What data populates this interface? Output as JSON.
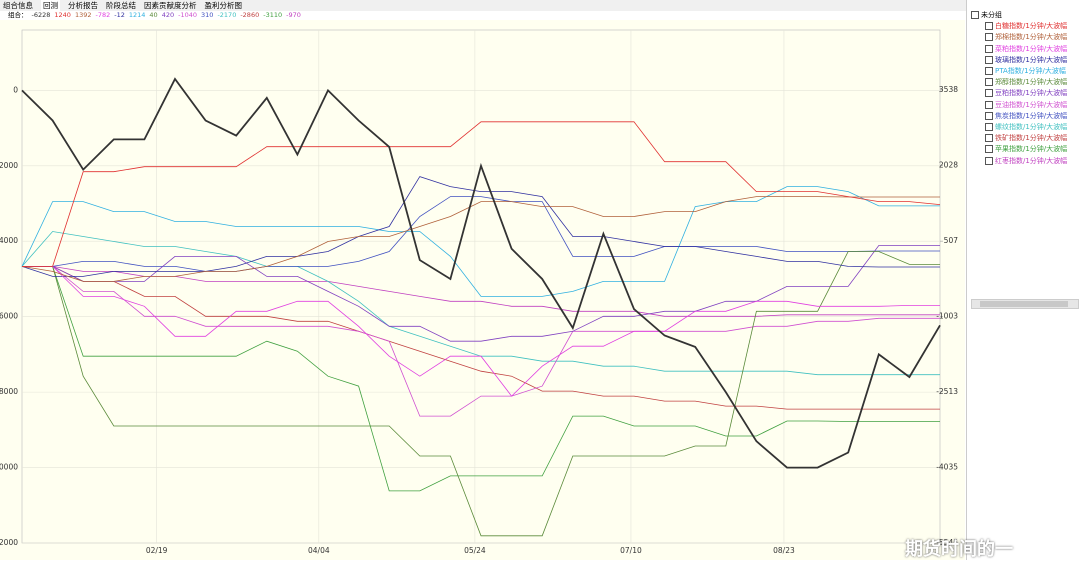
{
  "tabs": [
    "组合信息",
    "回测",
    "分析报告",
    "阶段总结",
    "因素贡献度分析",
    "盈利分析图"
  ],
  "tree_root": "未分组",
  "watermark": "期货时间的一",
  "chart_data": {
    "type": "line",
    "x": [
      0,
      10,
      20,
      30,
      40,
      50,
      60,
      70,
      80,
      90,
      100,
      110,
      120,
      130,
      140,
      150,
      160,
      170,
      180,
      190,
      200,
      210,
      220,
      230,
      240,
      250,
      260,
      270,
      280,
      290,
      300
    ],
    "xlim": [
      0,
      300
    ],
    "xticks": [
      {
        "value": 44,
        "label": "02/19"
      },
      {
        "value": 97,
        "label": "04/04"
      },
      {
        "value": 148,
        "label": "05/24"
      },
      {
        "value": 199,
        "label": "07/10"
      },
      {
        "value": 249,
        "label": "08/23"
      }
    ],
    "ylim": [
      -12000,
      1600
    ],
    "yticks": [
      0,
      -2000,
      -4000,
      -6000,
      -8000,
      -10000,
      -12000
    ],
    "y2lim": [
      -5545,
      4740
    ],
    "y2ticks": [
      3538,
      2028,
      507,
      -1003,
      -2513,
      -4035,
      -5545
    ],
    "grid": true,
    "series": [
      {
        "name": "组合：",
        "color": "#333333",
        "values": [
          0,
          -800,
          -2100,
          -1300,
          -1300,
          300,
          -800,
          -1200,
          -200,
          -1700,
          0,
          -800,
          -1500,
          -4500,
          -5000,
          -2000,
          -4200,
          -5000,
          -6300,
          -3800,
          -5800,
          -6500,
          -6800,
          -8000,
          -9300,
          -10000,
          -10000,
          -9600,
          -7000,
          -7600,
          -6228
        ]
      },
      {
        "name": "白糖指数/1分钟/大波幅",
        "color": "#e03030",
        "axis": "y2",
        "values": [
          0,
          0,
          1900,
          1900,
          2000,
          2000,
          2000,
          2000,
          2400,
          2400,
          2400,
          2400,
          2400,
          2400,
          2400,
          2900,
          2900,
          2900,
          2900,
          2900,
          2900,
          2100,
          2100,
          2100,
          1500,
          1500,
          1500,
          1400,
          1300,
          1300,
          1240
        ]
      },
      {
        "name": "郑棉指数/1分钟/大波幅",
        "color": "#b0603a",
        "axis": "y2",
        "values": [
          0,
          -100,
          -300,
          -300,
          -200,
          -200,
          -100,
          -100,
          0,
          200,
          500,
          600,
          600,
          800,
          1000,
          1300,
          1300,
          1200,
          1200,
          1000,
          1000,
          1100,
          1100,
          1300,
          1400,
          1400,
          1400,
          1392,
          1392,
          1392,
          1392
        ]
      },
      {
        "name": "菜粕指数/1分钟/大波幅",
        "color": "#e040e0",
        "axis": "y2",
        "values": [
          0,
          0,
          -600,
          -600,
          -800,
          -1400,
          -1400,
          -900,
          -900,
          -700,
          -700,
          -1200,
          -1800,
          -2200,
          -1800,
          -1800,
          -2600,
          -2000,
          -1600,
          -1600,
          -1300,
          -1300,
          -900,
          -900,
          -700,
          -700,
          -800,
          -800,
          -800,
          -782,
          -782
        ]
      },
      {
        "name": "玻璃指数/1分钟/大波幅",
        "color": "#3030a0",
        "axis": "y2",
        "values": [
          0,
          -200,
          -200,
          -100,
          -100,
          -100,
          -100,
          0,
          200,
          200,
          300,
          600,
          800,
          1800,
          1600,
          1500,
          1500,
          1400,
          600,
          600,
          500,
          400,
          400,
          300,
          200,
          100,
          100,
          0,
          -12,
          -12,
          -12
        ]
      },
      {
        "name": "PTA指数/1分钟/大波幅",
        "color": "#30b0e0",
        "axis": "y2",
        "values": [
          0,
          1300,
          1300,
          1100,
          1100,
          900,
          900,
          800,
          800,
          800,
          800,
          800,
          700,
          700,
          200,
          -600,
          -600,
          -600,
          -500,
          -300,
          -300,
          -300,
          1200,
          1300,
          1300,
          1600,
          1600,
          1500,
          1214,
          1214,
          1214
        ]
      },
      {
        "name": "郑醇指数/1分钟/大波幅",
        "color": "#5a8a3a",
        "axis": "y2",
        "values": [
          0,
          0,
          -2200,
          -3200,
          -3200,
          -3200,
          -3200,
          -3200,
          -3200,
          -3200,
          -3200,
          -3200,
          -3200,
          -3800,
          -3800,
          -5400,
          -5400,
          -5400,
          -3800,
          -3800,
          -3800,
          -3800,
          -3600,
          -3600,
          -900,
          -900,
          -900,
          300,
          300,
          40,
          40
        ]
      },
      {
        "name": "豆粕指数/1分钟/大波幅",
        "color": "#8040c0",
        "axis": "y2",
        "values": [
          0,
          0,
          -300,
          -300,
          -300,
          200,
          200,
          200,
          -200,
          -200,
          -500,
          -800,
          -1200,
          -1200,
          -1500,
          -1500,
          -1400,
          -1400,
          -1300,
          -1000,
          -1000,
          -900,
          -900,
          -700,
          -700,
          -400,
          -400,
          -400,
          420,
          420,
          420
        ]
      },
      {
        "name": "豆油指数/1分钟/大波幅",
        "color": "#d050d0",
        "axis": "y2",
        "values": [
          0,
          0,
          -500,
          -500,
          -1000,
          -1000,
          -1200,
          -1200,
          -1200,
          -1200,
          -1200,
          -1300,
          -1500,
          -3000,
          -3000,
          -2600,
          -2600,
          -2400,
          -1300,
          -1300,
          -1300,
          -1300,
          -1300,
          -1300,
          -1200,
          -1200,
          -1100,
          -1100,
          -1040,
          -1040,
          -1040
        ]
      },
      {
        "name": "焦炭指数/1分钟/大波幅",
        "color": "#4050c0",
        "axis": "y2",
        "values": [
          0,
          0,
          100,
          100,
          0,
          0,
          -100,
          -100,
          0,
          0,
          0,
          100,
          300,
          1000,
          1400,
          1400,
          1300,
          1300,
          200,
          200,
          200,
          400,
          400,
          400,
          400,
          300,
          300,
          300,
          310,
          310,
          310
        ]
      },
      {
        "name": "螺纹指数/1分钟/大波幅",
        "color": "#40c0c0",
        "axis": "y2",
        "values": [
          0,
          700,
          600,
          500,
          400,
          400,
          300,
          200,
          0,
          0,
          -300,
          -700,
          -1200,
          -1400,
          -1600,
          -1800,
          -1800,
          -1900,
          -1900,
          -2000,
          -2000,
          -2100,
          -2100,
          -2100,
          -2100,
          -2100,
          -2170,
          -2170,
          -2170,
          -2170,
          -2170
        ]
      },
      {
        "name": "铁矿指数/1分钟/大波幅",
        "color": "#c04040",
        "axis": "y2",
        "values": [
          0,
          0,
          -300,
          -300,
          -600,
          -600,
          -1000,
          -1000,
          -1000,
          -1100,
          -1100,
          -1300,
          -1500,
          -1700,
          -1900,
          -2100,
          -2200,
          -2500,
          -2500,
          -2600,
          -2600,
          -2700,
          -2700,
          -2800,
          -2800,
          -2860,
          -2860,
          -2860,
          -2860,
          -2860,
          -2860
        ]
      },
      {
        "name": "苹果指数/1分钟/大波幅",
        "color": "#40a040",
        "axis": "y2",
        "values": [
          0,
          0,
          -1800,
          -1800,
          -1800,
          -1800,
          -1800,
          -1800,
          -1500,
          -1700,
          -2200,
          -2400,
          -4500,
          -4500,
          -4200,
          -4200,
          -4200,
          -4200,
          -3000,
          -3000,
          -3200,
          -3200,
          -3200,
          -3400,
          -3400,
          -3100,
          -3100,
          -3110,
          -3110,
          -3110,
          -3110
        ]
      },
      {
        "name": "红枣指数/1分钟/大波幅",
        "color": "#c040c0",
        "axis": "y2",
        "values": [
          0,
          0,
          -100,
          -100,
          -200,
          -200,
          -300,
          -300,
          -300,
          -300,
          -300,
          -400,
          -500,
          -600,
          -700,
          -700,
          -800,
          -800,
          -900,
          -900,
          -900,
          -1000,
          -1000,
          -1000,
          -1000,
          -970,
          -970,
          -970,
          -970,
          -970,
          -970
        ]
      }
    ]
  }
}
